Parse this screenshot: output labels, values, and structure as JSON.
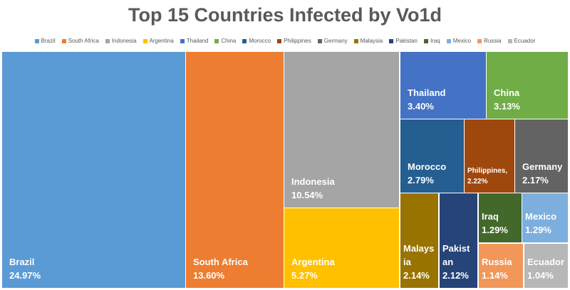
{
  "chart_data": {
    "type": "treemap",
    "title": "Top 15 Countries Infected by Vo1d",
    "legend_position": "top",
    "categories": [
      "Brazil",
      "South Africa",
      "Indonesia",
      "Argentina",
      "Thailand",
      "China",
      "Morocco",
      "Philippines",
      "Germany",
      "Malaysia",
      "Pakistan",
      "Iraq",
      "Mexico",
      "Russia",
      "Ecuador"
    ],
    "labels": [
      "Brazil",
      "South Africa",
      "Indonesia",
      "Argentina",
      "Thailand",
      "China",
      "Morocco",
      "Philippines,",
      "Germany",
      "Malaysia",
      "Pakistan",
      "Iraq",
      "Mexico",
      "Russia",
      "Ecuador"
    ],
    "values": [
      24.97,
      13.6,
      10.54,
      5.27,
      3.4,
      3.13,
      2.79,
      2.22,
      2.17,
      2.14,
      2.12,
      1.29,
      1.29,
      1.14,
      1.04
    ],
    "value_labels": [
      "24.97%",
      "13.60%",
      "10.54%",
      "5.27%",
      "3.40%",
      "3.13%",
      "2.79%",
      "2.22%",
      "2.17%",
      "2.14%",
      "2.12%",
      "1.29%",
      "1.29%",
      "1.14%",
      "1.04%"
    ],
    "colors": [
      "#5B9BD5",
      "#ED7D31",
      "#A5A5A5",
      "#FFC000",
      "#4472C4",
      "#70AD47",
      "#255E91",
      "#9E480E",
      "#636363",
      "#997300",
      "#264478",
      "#43682B",
      "#7CAFDD",
      "#F1975A",
      "#B7B7B7"
    ]
  }
}
